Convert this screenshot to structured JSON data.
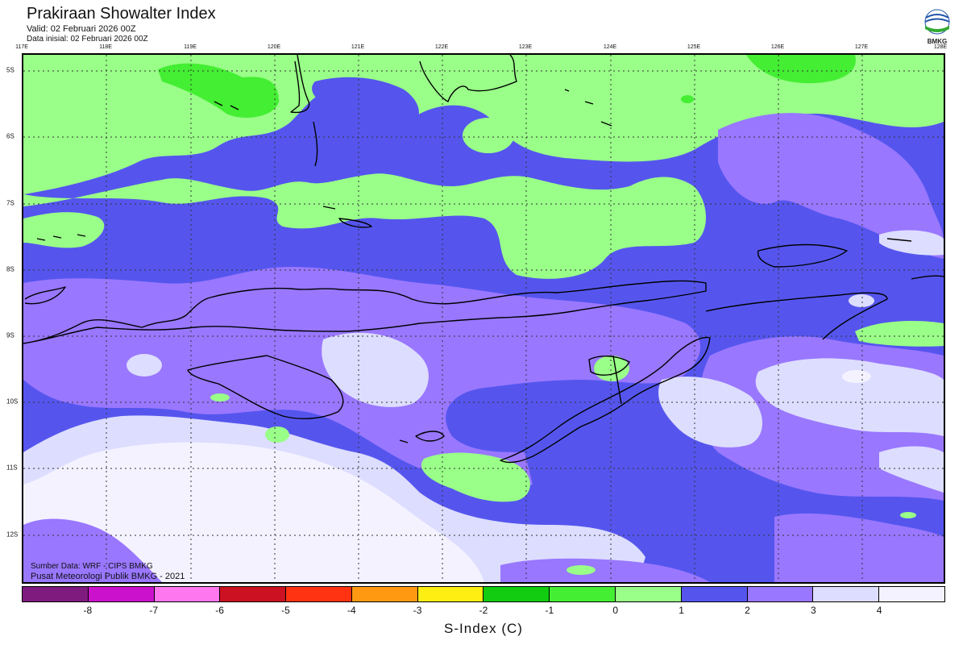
{
  "title": "Prakiraan Showalter Index",
  "valid": "Valid: 02 Februari 2026 00Z",
  "initial": "Data inisial: 02 Februari 2026 00Z",
  "logo_text": "BMKG",
  "lon_labels": [
    "117E",
    "118E",
    "119E",
    "120E",
    "121E",
    "122E",
    "123E",
    "124E",
    "125E",
    "126E",
    "127E",
    "128E"
  ],
  "lat_labels": [
    "5S",
    "6S",
    "7S",
    "8S",
    "9S",
    "10S",
    "11S",
    "12S"
  ],
  "credit_source": "Sumber Data: WRF - CIPS BMKG",
  "credit_center": "Pusat Meteorologi Publik BMKG - 2021",
  "colorbar": {
    "label": "S-Index (C)",
    "ticks": [
      "-8",
      "-7",
      "-6",
      "-5",
      "-4",
      "-3",
      "-2",
      "-1",
      "0",
      "1",
      "2",
      "3",
      "4"
    ],
    "colors": [
      "#7f1a7f",
      "#cc11cc",
      "#ff77ee",
      "#cc1122",
      "#ff3311",
      "#ff9911",
      "#ffee11",
      "#11cc11",
      "#44ee33",
      "#99ff88",
      "#5555ee",
      "#9977ff",
      "#ddddff",
      "#f4f2ff"
    ]
  }
}
